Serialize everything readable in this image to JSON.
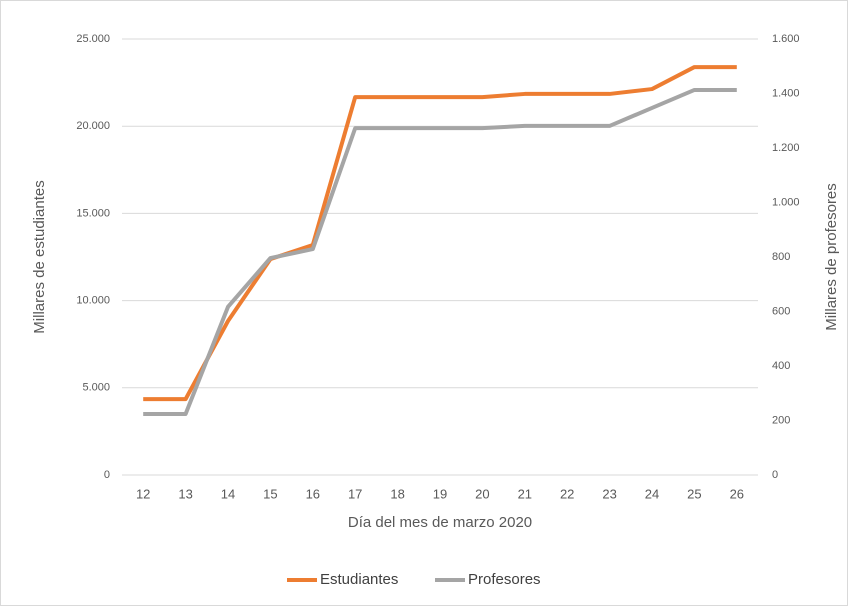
{
  "chart_data": {
    "type": "line",
    "x_label": "Día del mes de marzo 2020",
    "y_label": "Millares de estudiantes",
    "y2_label": "Millares de profesores",
    "categories": [
      "12",
      "13",
      "14",
      "15",
      "16",
      "17",
      "18",
      "19",
      "20",
      "21",
      "22",
      "23",
      "24",
      "25",
      "26"
    ],
    "series": [
      {
        "name": "Estudiantes",
        "color": "#ed7d31",
        "axis": "y",
        "values": [
          4350,
          4350,
          8830,
          12380,
          13190,
          21670,
          21670,
          21670,
          21670,
          21850,
          21850,
          21850,
          22130,
          23390,
          23390
        ]
      },
      {
        "name": "Profesores",
        "color": "#a5a5a5",
        "axis": "y2",
        "values": [
          224,
          224,
          617,
          796,
          829,
          1273,
          1273,
          1273,
          1273,
          1281,
          1281,
          1281,
          1347,
          1413,
          1413
        ]
      }
    ],
    "ylim": [
      0,
      25000
    ],
    "yticks": [
      0,
      {
        "value": 5000,
        "label": "5.000"
      },
      {
        "value": 10000,
        "label": "10.000"
      },
      {
        "value": 15000,
        "label": "15.000"
      },
      {
        "value": 20000,
        "label": "20.000"
      },
      {
        "value": 25000,
        "label": "25.000"
      }
    ],
    "y2lim": [
      0,
      1600
    ],
    "y2ticks": [
      0,
      200,
      400,
      600,
      800,
      {
        "value": 1000,
        "label": "1.000"
      },
      {
        "value": 1200,
        "label": "1.200"
      },
      {
        "value": 1400,
        "label": "1.400"
      },
      {
        "value": 1600,
        "label": "1.600"
      }
    ],
    "grid": true,
    "legend": "bottom"
  }
}
